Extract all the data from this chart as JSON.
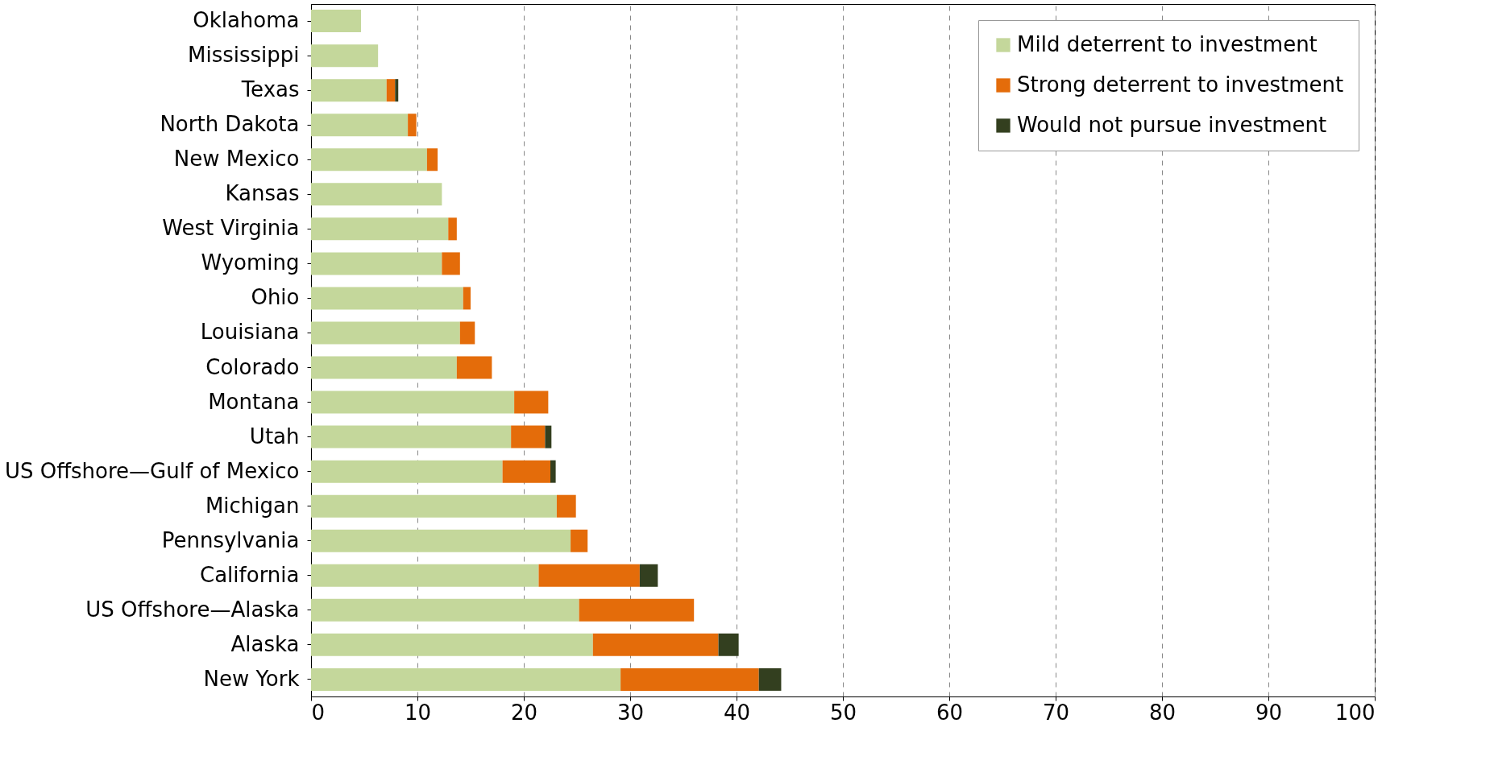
{
  "chart_data": {
    "type": "bar",
    "orientation": "horizontal",
    "stacked": true,
    "categories": [
      "Oklahoma",
      "Mississippi",
      "Texas",
      "North Dakota",
      "New Mexico",
      "Kansas",
      "West Virginia",
      "Wyoming",
      "Ohio",
      "Louisiana",
      "Colorado",
      "Montana",
      "Utah",
      "US Offshore—Gulf of Mexico",
      "Michigan",
      "Pennsylvania",
      "California",
      "US Offshore—Alaska",
      "Alaska",
      "New York"
    ],
    "series": [
      {
        "name": "Mild deterrent to investment",
        "color": "#c4d79b",
        "values": [
          4.7,
          6.3,
          7.1,
          9.1,
          10.9,
          12.3,
          12.9,
          12.3,
          14.3,
          14.0,
          13.7,
          19.1,
          18.8,
          18.0,
          23.1,
          24.4,
          21.4,
          25.2,
          26.5,
          29.1
        ]
      },
      {
        "name": "Strong deterrent to investment",
        "color": "#e46c0a",
        "values": [
          null,
          null,
          0.8,
          0.8,
          1.0,
          null,
          0.8,
          1.7,
          0.7,
          1.4,
          3.3,
          3.2,
          3.2,
          4.5,
          1.8,
          1.6,
          9.5,
          10.8,
          11.8,
          13.0
        ]
      },
      {
        "name": "Would not pursue investment",
        "color": "#333f1f",
        "values": [
          null,
          null,
          0.3,
          null,
          null,
          null,
          null,
          null,
          null,
          null,
          null,
          null,
          0.6,
          0.5,
          null,
          null,
          1.7,
          null,
          1.9,
          2.1
        ]
      }
    ],
    "xlim": [
      0,
      100
    ],
    "xticks": [
      0,
      10,
      20,
      30,
      40,
      50,
      60,
      70,
      80,
      90,
      100
    ],
    "grid": "x",
    "legend": "top right"
  }
}
